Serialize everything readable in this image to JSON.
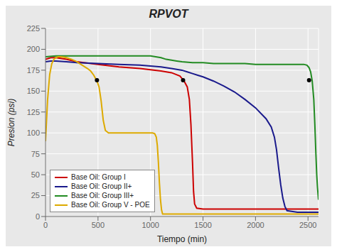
{
  "chart_data": {
    "type": "line",
    "title": "RPVOT",
    "x_label": "Tiempo (min)",
    "y_label": "Presion (psi)",
    "xlim": [
      0,
      2600
    ],
    "ylim": [
      0,
      225
    ],
    "xticks": [
      0,
      500,
      1000,
      1500,
      2000,
      2500
    ],
    "yticks": [
      0,
      25,
      50,
      75,
      100,
      125,
      150,
      175,
      200,
      225
    ],
    "grid": true,
    "legend": "lower left",
    "series": [
      {
        "name": "Base Oil: Group I",
        "color": "#cc0000",
        "x": [
          0,
          50,
          100,
          200,
          300,
          500,
          700,
          900,
          1100,
          1200,
          1280,
          1320,
          1350,
          1370,
          1385,
          1400,
          1410,
          1420,
          1440,
          1500,
          1700,
          2000,
          2300,
          2600
        ],
        "values": [
          188,
          190,
          190,
          188,
          185,
          182,
          179,
          177,
          174,
          172,
          168,
          162,
          155,
          140,
          110,
          65,
          30,
          15,
          10,
          9,
          9,
          9,
          9,
          9
        ],
        "point": {
          "x": 1310,
          "y": 163
        }
      },
      {
        "name": "Base Oil: Group II+",
        "color": "#1a1a8c",
        "x": [
          0,
          50,
          100,
          200,
          300,
          500,
          700,
          900,
          1000,
          1100,
          1200,
          1300,
          1350,
          1400,
          1450,
          1500,
          1600,
          1700,
          1800,
          1900,
          2000,
          2100,
          2150,
          2180,
          2200,
          2220,
          2240,
          2260,
          2280,
          2300,
          2400,
          2600
        ],
        "values": [
          185,
          186,
          186,
          185,
          184,
          183,
          182,
          181,
          180,
          179,
          177,
          175,
          173,
          171,
          169,
          167,
          162,
          156,
          149,
          140,
          130,
          117,
          107,
          95,
          80,
          58,
          38,
          22,
          12,
          7,
          5,
          5
        ]
      },
      {
        "name": "Base Oil: Group III+",
        "color": "#228B22",
        "x": [
          0,
          100,
          200,
          300,
          500,
          700,
          900,
          1000,
          1050,
          1100,
          1150,
          1200,
          1250,
          1300,
          1400,
          1500,
          1600,
          1700,
          1800,
          1900,
          2000,
          2100,
          2200,
          2300,
          2400,
          2460,
          2490,
          2510,
          2525,
          2540,
          2555,
          2565,
          2575,
          2583,
          2590,
          2600
        ],
        "values": [
          191,
          192,
          192,
          192,
          192,
          192,
          192,
          192,
          191,
          190,
          188,
          187,
          186,
          185,
          184,
          184,
          183,
          183,
          183,
          183,
          182,
          182,
          182,
          182,
          182,
          182,
          181,
          178,
          173,
          162,
          140,
          110,
          75,
          50,
          35,
          20
        ],
        "point": {
          "x": 2510,
          "y": 163
        }
      },
      {
        "name": "Base Oil: Group V - POE",
        "color": "#ddaa00",
        "x": [
          0,
          20,
          40,
          60,
          80,
          100,
          120,
          150,
          200,
          250,
          300,
          350,
          400,
          430,
          460,
          490,
          510,
          530,
          550,
          570,
          600,
          700,
          800,
          900,
          1000,
          1020,
          1040,
          1055,
          1065,
          1075,
          1085,
          1095,
          1105,
          1115,
          1200,
          2600
        ],
        "values": [
          90,
          140,
          170,
          183,
          188,
          190,
          191,
          191,
          190,
          188,
          185,
          181,
          177,
          174,
          169,
          162,
          155,
          138,
          115,
          103,
          100,
          100,
          100,
          100,
          100,
          100,
          99,
          95,
          85,
          65,
          40,
          20,
          8,
          3,
          3,
          3
        ],
        "point": {
          "x": 490,
          "y": 163
        }
      }
    ]
  }
}
